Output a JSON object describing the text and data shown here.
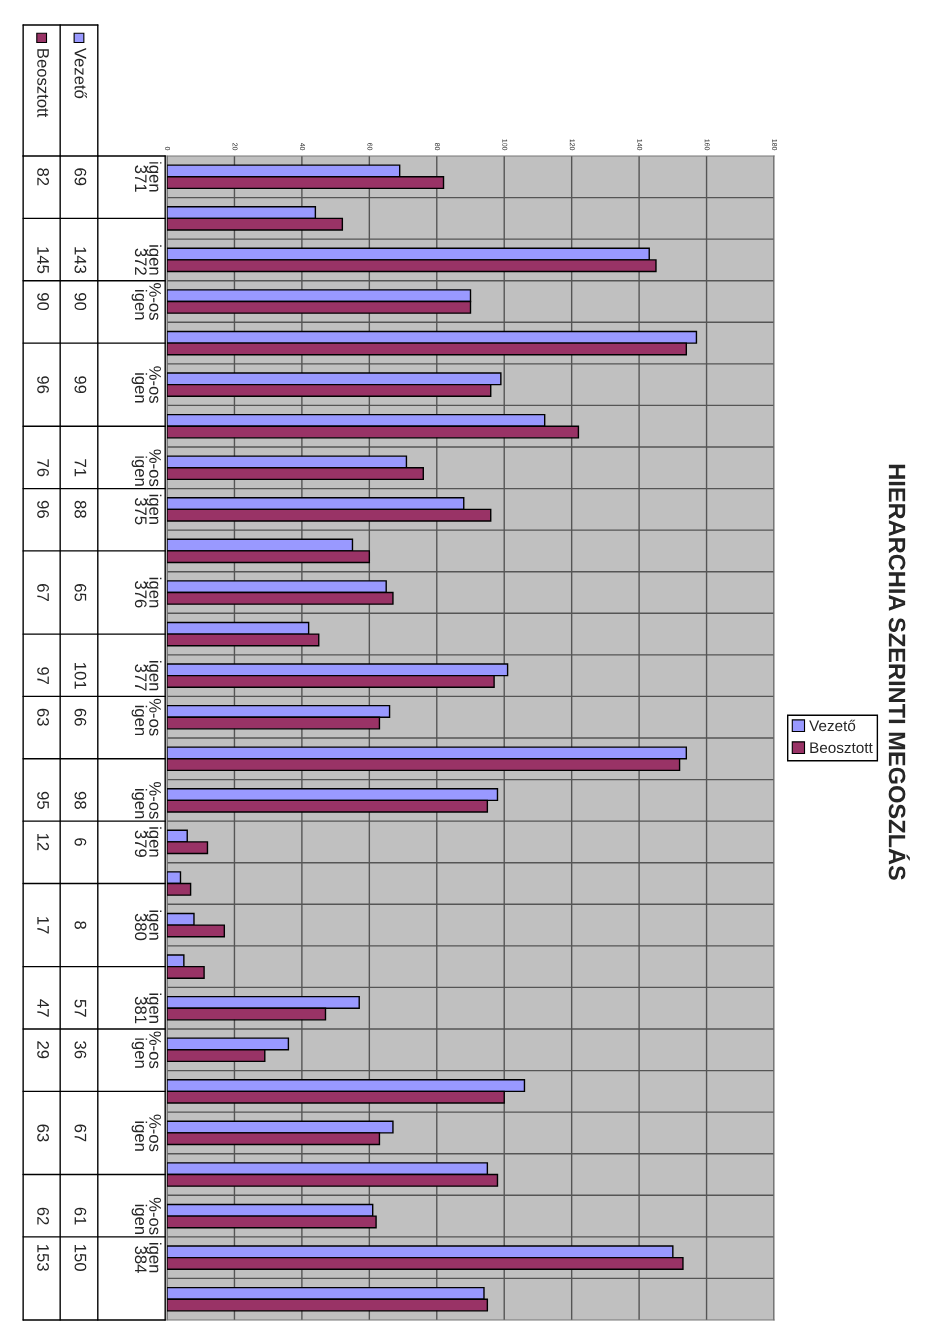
{
  "chart_data": {
    "type": "bar",
    "orientation": "horizontal",
    "title": "HIERARCHIA SZERINTI MEGOSZLÁS",
    "categories": [
      "igen\n371",
      null,
      "igen\n372",
      "%-os\nigen",
      null,
      "%-os\nigen",
      null,
      "%-os\nigen",
      "igen\n375",
      null,
      "igen\n376",
      null,
      "igen\n377",
      "%-os\nigen",
      null,
      "%-os\nigen",
      "igen\n379",
      null,
      "igen\n380",
      null,
      "igen\n381",
      "%-os\nigen",
      null,
      "%-os\nigen",
      null,
      "%-os\nigen",
      "igen\n384",
      null
    ],
    "series": [
      {
        "name": "Vezető",
        "color": "#9999ff",
        "values": [
          69,
          44,
          143,
          90,
          157,
          99,
          112,
          71,
          88,
          55,
          65,
          42,
          101,
          66,
          154,
          98,
          6,
          4,
          8,
          5,
          57,
          36,
          106,
          67,
          95,
          61,
          150,
          94
        ],
        "value_labels": [
          "69",
          null,
          "143",
          "90",
          null,
          "99",
          null,
          "71",
          "88",
          null,
          "65",
          null,
          "101",
          "66",
          null,
          "98",
          "6",
          null,
          "8",
          null,
          "57",
          "36",
          null,
          "67",
          null,
          "61",
          "150",
          null
        ]
      },
      {
        "name": "Beosztott",
        "color": "#993366",
        "values": [
          82,
          52,
          145,
          90,
          154,
          96,
          122,
          76,
          96,
          60,
          67,
          45,
          97,
          63,
          152,
          95,
          12,
          7,
          17,
          11,
          47,
          29,
          100,
          63,
          98,
          62,
          153,
          95
        ],
        "value_labels": [
          "82",
          null,
          "145",
          "90",
          null,
          "96",
          null,
          "76",
          "96",
          null,
          "67",
          null,
          "97",
          "63",
          null,
          "95",
          "12",
          null,
          "17",
          null,
          "47",
          "29",
          null,
          "63",
          null,
          "62",
          "153",
          null
        ]
      }
    ],
    "xlim": [
      0,
      180
    ],
    "xticks": [
      0,
      20,
      40,
      60,
      80,
      100,
      120,
      140,
      160,
      180
    ],
    "grid": true,
    "legend": "right"
  }
}
